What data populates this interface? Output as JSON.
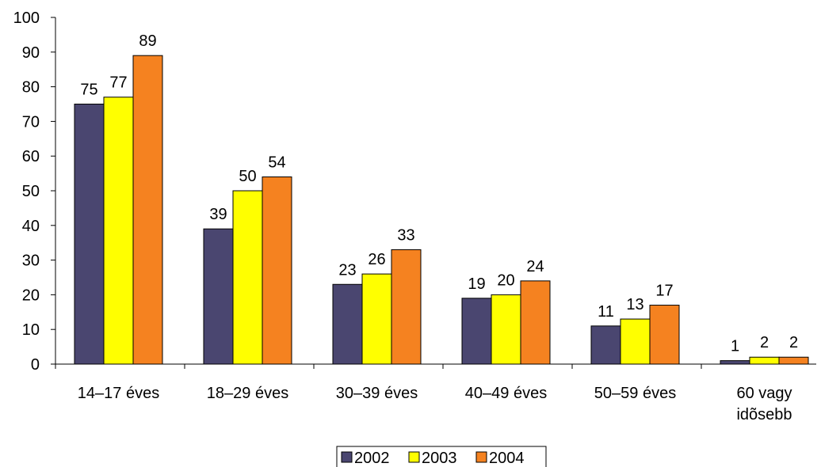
{
  "chart_data": {
    "type": "bar",
    "title": "",
    "xlabel": "",
    "ylabel": "",
    "ylim": [
      0,
      100
    ],
    "yticks": [
      0,
      10,
      20,
      30,
      40,
      50,
      60,
      70,
      80,
      90,
      100
    ],
    "categories": [
      [
        "14–17 éves"
      ],
      [
        "18–29 éves"
      ],
      [
        "30–39 éves"
      ],
      [
        "40–49 éves"
      ],
      [
        "50–59 éves"
      ],
      [
        "60 vagy",
        "idõsebb"
      ]
    ],
    "series": [
      {
        "name": "2002",
        "color": "#4a4670",
        "values": [
          75,
          39,
          23,
          19,
          11,
          1
        ]
      },
      {
        "name": "2003",
        "color": "#ffff00",
        "values": [
          77,
          50,
          26,
          20,
          13,
          2
        ]
      },
      {
        "name": "2004",
        "color": "#f58220",
        "values": [
          89,
          54,
          33,
          24,
          17,
          2
        ]
      }
    ],
    "data_labels": true,
    "grid": false,
    "legend_position": "bottom"
  }
}
